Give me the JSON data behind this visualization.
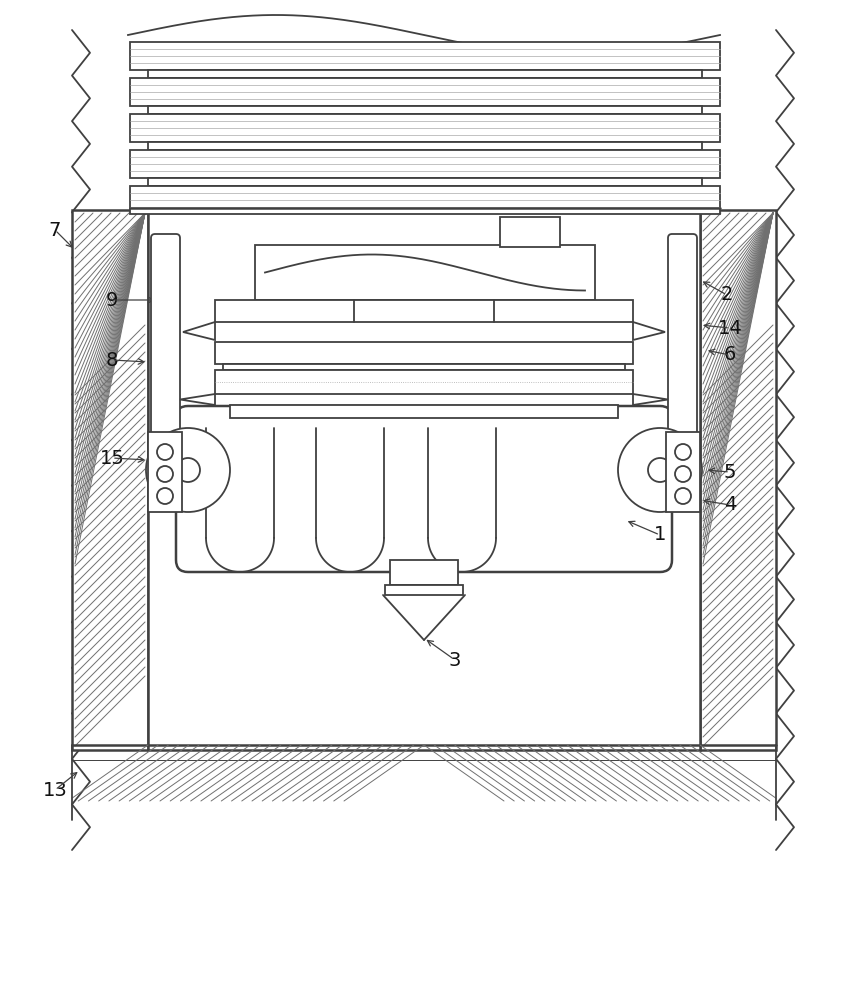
{
  "bg": "#ffffff",
  "lc": "#404040",
  "lw": 1.3,
  "lw2": 1.8,
  "lw_thin": 0.7,
  "hc": "#707070",
  "figsize": [
    8.48,
    10.0
  ],
  "dpi": 100
}
